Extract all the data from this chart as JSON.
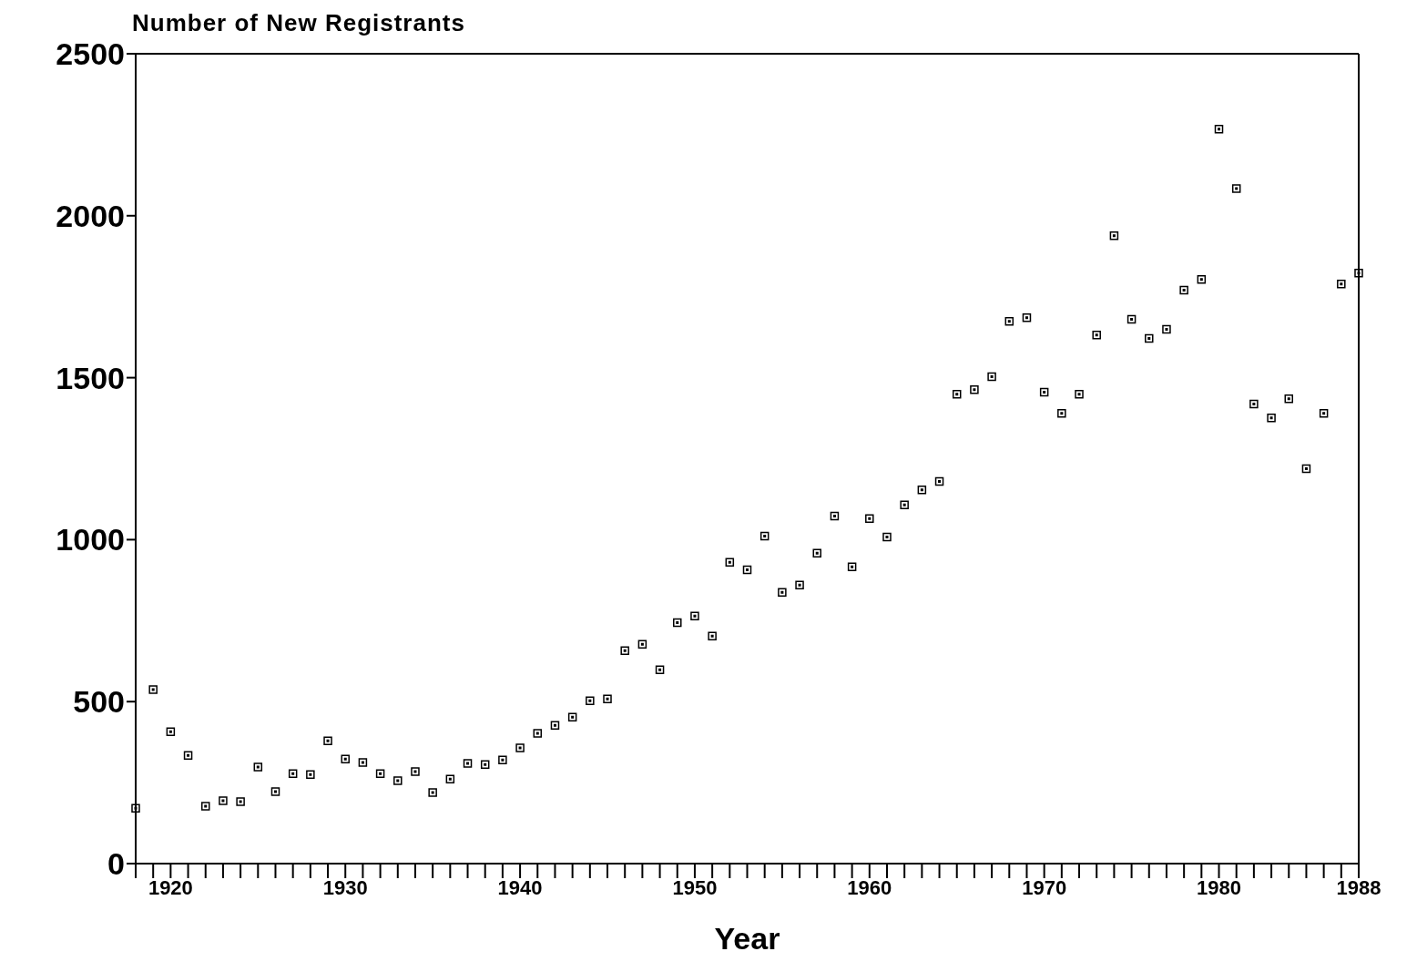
{
  "chart_data": {
    "type": "scatter",
    "ylabel": "Number of New Registrants",
    "xlabel": "Year",
    "x": [
      1918,
      1919,
      1920,
      1921,
      1922,
      1923,
      1924,
      1925,
      1926,
      1927,
      1928,
      1929,
      1930,
      1931,
      1932,
      1933,
      1934,
      1935,
      1936,
      1937,
      1938,
      1939,
      1940,
      1941,
      1942,
      1943,
      1944,
      1945,
      1946,
      1947,
      1948,
      1949,
      1950,
      1951,
      1952,
      1953,
      1954,
      1955,
      1956,
      1957,
      1958,
      1959,
      1960,
      1961,
      1962,
      1963,
      1964,
      1965,
      1966,
      1967,
      1968,
      1969,
      1970,
      1971,
      1972,
      1973,
      1974,
      1975,
      1976,
      1977,
      1978,
      1979,
      1980,
      1981,
      1982,
      1983,
      1984,
      1985,
      1986,
      1987,
      1988
    ],
    "series": [
      {
        "color": "#000000",
        "values": [
          171,
          537,
          407,
          334,
          177,
          194,
          191,
          298,
          222,
          278,
          275,
          379,
          323,
          312,
          278,
          256,
          284,
          219,
          261,
          309,
          306,
          320,
          357,
          402,
          427,
          452,
          503,
          508,
          657,
          677,
          598,
          744,
          764,
          702,
          930,
          907,
          1011,
          837,
          860,
          958,
          1073,
          916,
          1065,
          1008,
          1107,
          1154,
          1180,
          1449,
          1463,
          1503,
          1674,
          1685,
          1455,
          1390,
          1449,
          1632,
          1938,
          1680,
          1621,
          1649,
          1770,
          1803,
          2267,
          2084,
          1419,
          1376,
          1435,
          1219,
          1390,
          1789,
          1823
        ]
      }
    ],
    "xlim": [
      1918,
      1988
    ],
    "xticks": [
      {
        "value": 1918,
        "label": null
      },
      {
        "value": 1919,
        "label": null
      },
      1920,
      {
        "value": 1921,
        "label": null
      },
      {
        "value": 1922,
        "label": null
      },
      {
        "value": 1923,
        "label": null
      },
      {
        "value": 1924,
        "label": null
      },
      {
        "value": 1925,
        "label": null
      },
      {
        "value": 1926,
        "label": null
      },
      {
        "value": 1927,
        "label": null
      },
      {
        "value": 1928,
        "label": null
      },
      {
        "value": 1929,
        "label": null
      },
      1930,
      {
        "value": 1931,
        "label": null
      },
      {
        "value": 1932,
        "label": null
      },
      {
        "value": 1933,
        "label": null
      },
      {
        "value": 1934,
        "label": null
      },
      {
        "value": 1935,
        "label": null
      },
      {
        "value": 1936,
        "label": null
      },
      {
        "value": 1937,
        "label": null
      },
      {
        "value": 1938,
        "label": null
      },
      {
        "value": 1939,
        "label": null
      },
      1940,
      {
        "value": 1941,
        "label": null
      },
      {
        "value": 1942,
        "label": null
      },
      {
        "value": 1943,
        "label": null
      },
      {
        "value": 1944,
        "label": null
      },
      {
        "value": 1945,
        "label": null
      },
      {
        "value": 1946,
        "label": null
      },
      {
        "value": 1947,
        "label": null
      },
      {
        "value": 1948,
        "label": null
      },
      {
        "value": 1949,
        "label": null
      },
      1950,
      {
        "value": 1951,
        "label": null
      },
      {
        "value": 1952,
        "label": null
      },
      {
        "value": 1953,
        "label": null
      },
      {
        "value": 1954,
        "label": null
      },
      {
        "value": 1955,
        "label": null
      },
      {
        "value": 1956,
        "label": null
      },
      {
        "value": 1957,
        "label": null
      },
      {
        "value": 1958,
        "label": null
      },
      {
        "value": 1959,
        "label": null
      },
      1960,
      {
        "value": 1961,
        "label": null
      },
      {
        "value": 1962,
        "label": null
      },
      {
        "value": 1963,
        "label": null
      },
      {
        "value": 1964,
        "label": null
      },
      {
        "value": 1965,
        "label": null
      },
      {
        "value": 1966,
        "label": null
      },
      {
        "value": 1967,
        "label": null
      },
      {
        "value": 1968,
        "label": null
      },
      {
        "value": 1969,
        "label": null
      },
      1970,
      {
        "value": 1971,
        "label": null
      },
      {
        "value": 1972,
        "label": null
      },
      {
        "value": 1973,
        "label": null
      },
      {
        "value": 1974,
        "label": null
      },
      {
        "value": 1975,
        "label": null
      },
      {
        "value": 1976,
        "label": null
      },
      {
        "value": 1977,
        "label": null
      },
      {
        "value": 1978,
        "label": null
      },
      {
        "value": 1979,
        "label": null
      },
      1980,
      {
        "value": 1981,
        "label": null
      },
      {
        "value": 1982,
        "label": null
      },
      {
        "value": 1983,
        "label": null
      },
      {
        "value": 1984,
        "label": null
      },
      {
        "value": 1985,
        "label": null
      },
      {
        "value": 1986,
        "label": null
      },
      {
        "value": 1987,
        "label": null
      },
      1988
    ],
    "ylim": [
      0,
      2500
    ],
    "yticks": [
      0,
      500,
      1000,
      1500,
      2000,
      2500
    ],
    "marker": "square"
  }
}
